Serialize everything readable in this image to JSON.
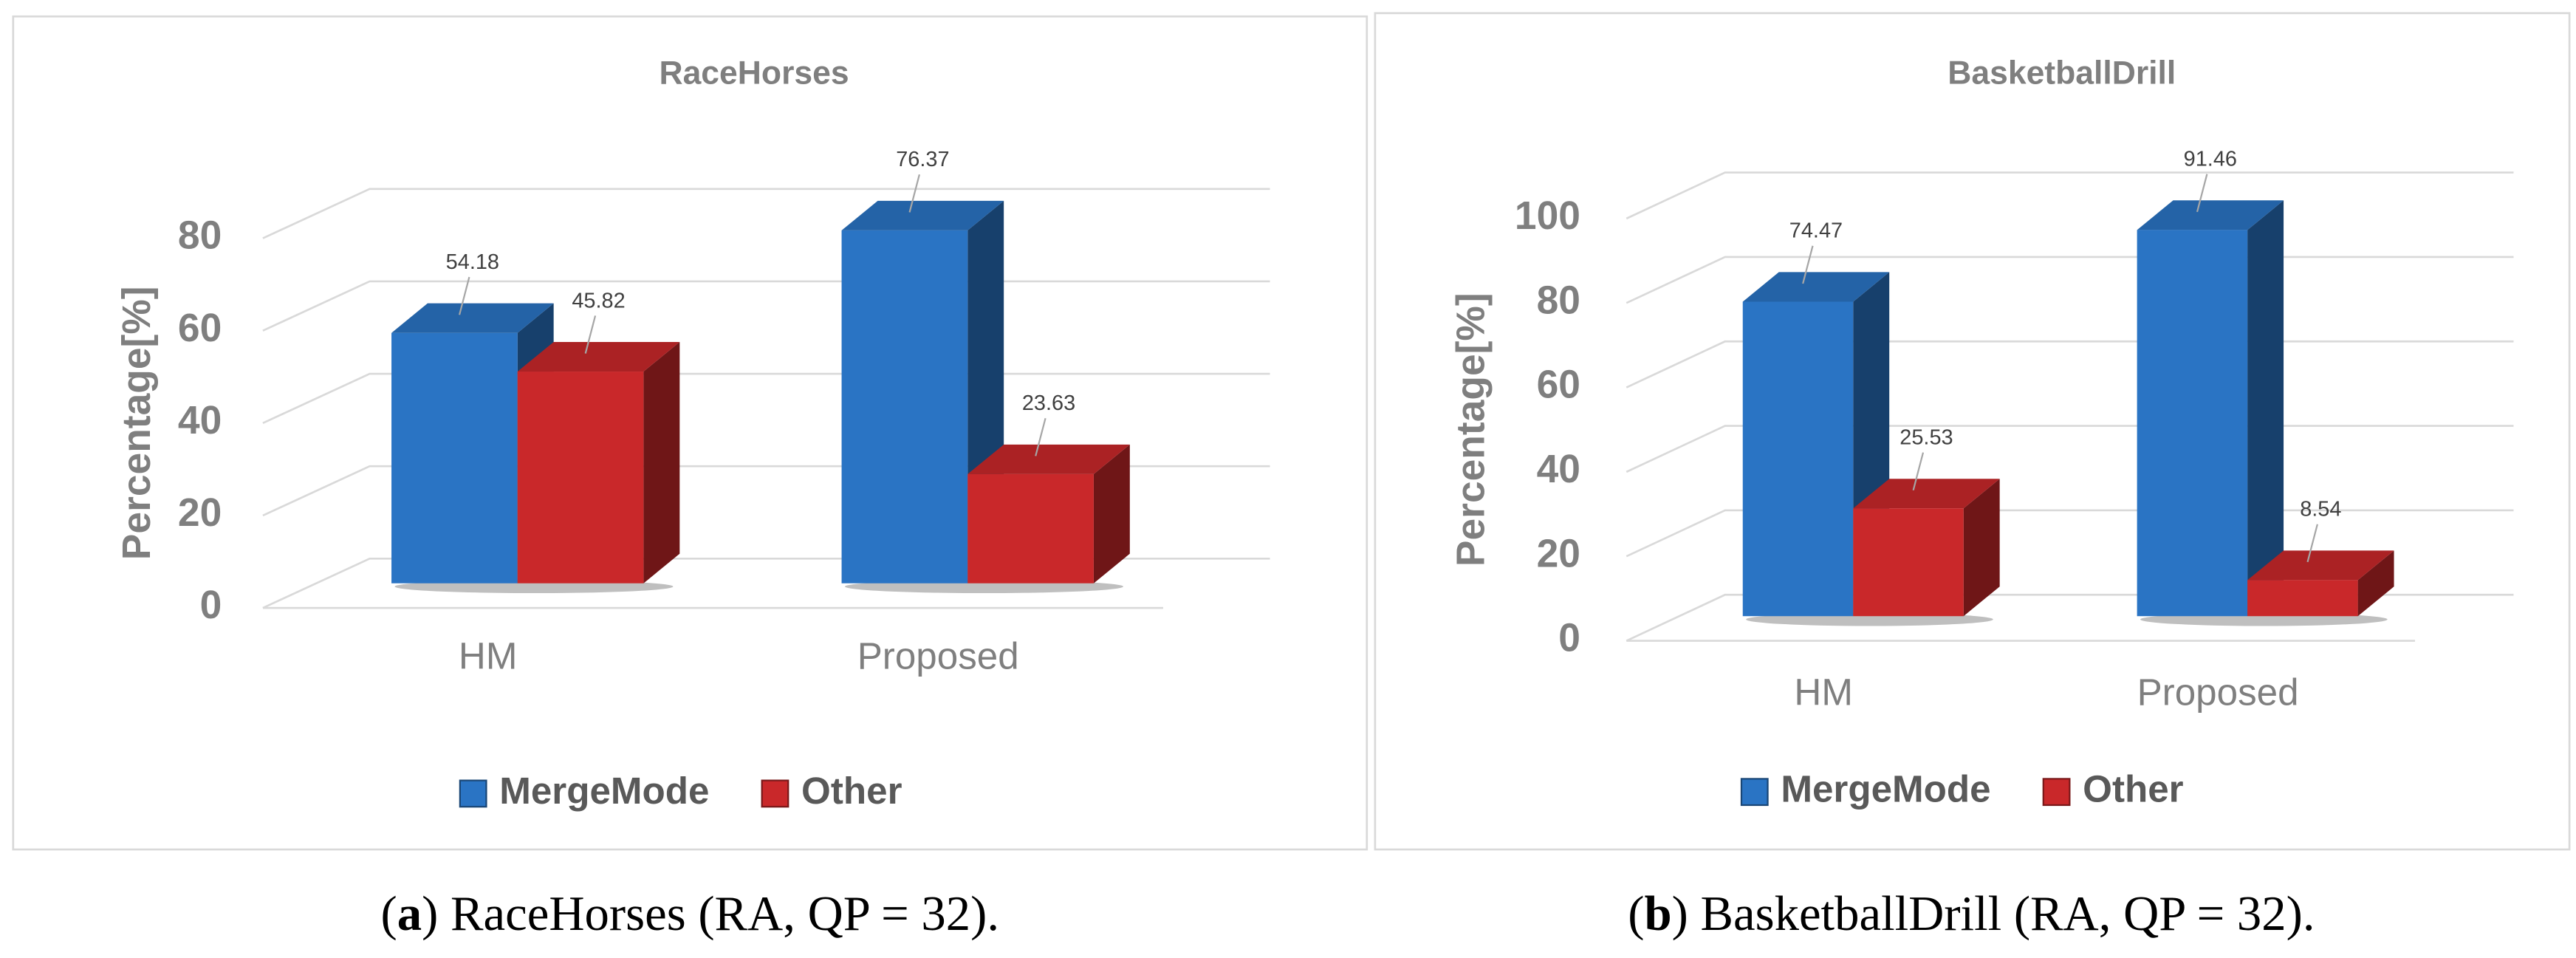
{
  "chart_data": [
    {
      "type": "bar",
      "title": "RaceHorses",
      "y_label": "Percentage[%]",
      "categories": [
        "HM",
        "Proposed"
      ],
      "series": [
        {
          "name": "MergeMode",
          "color": "#2a74c4",
          "values": [
            54.18,
            76.37
          ]
        },
        {
          "name": "Other",
          "color": "#c9282a",
          "values": [
            45.82,
            23.63
          ]
        }
      ],
      "ylim": [
        0,
        80
      ],
      "yticks": [
        0,
        20,
        40,
        60,
        80
      ],
      "grid": true,
      "legend": "bottom",
      "caption": {
        "open": "(",
        "label": "a",
        "rest": ") RaceHorses (RA, QP = 32)."
      }
    },
    {
      "type": "bar",
      "title": "BasketballDrill",
      "y_label": "Percentage[%]",
      "categories": [
        "HM",
        "Proposed"
      ],
      "series": [
        {
          "name": "MergeMode",
          "color": "#2a74c4",
          "values": [
            74.47,
            91.46
          ]
        },
        {
          "name": "Other",
          "color": "#c9282a",
          "values": [
            25.53,
            8.54
          ]
        }
      ],
      "ylim": [
        0,
        100
      ],
      "yticks": [
        0,
        20,
        40,
        60,
        80,
        100
      ],
      "grid": true,
      "legend": "bottom",
      "caption": {
        "open": "(",
        "label": "b",
        "rest": ") BasketballDrill (RA, QP = 32)."
      }
    }
  ]
}
